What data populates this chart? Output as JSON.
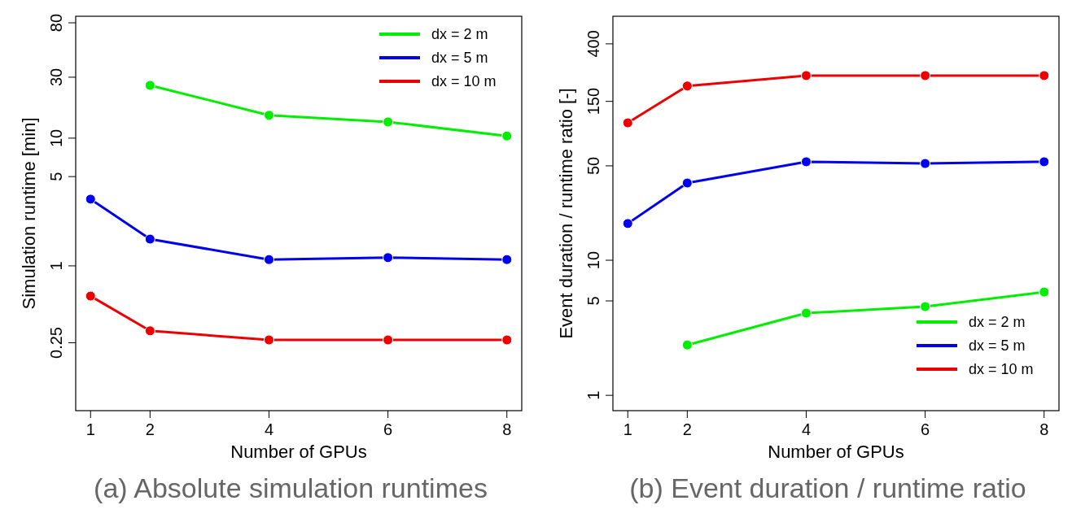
{
  "chart_data": [
    {
      "type": "line",
      "title": "(a) Absolute simulation runtimes",
      "xlabel": "Number of GPUs",
      "ylabel": "Simulation runtime [min]",
      "log": "y",
      "xlim": [
        0.75,
        8.25
      ],
      "xticks": [
        1,
        2,
        4,
        6,
        8
      ],
      "ylim": [
        0.0735,
        90
      ],
      "yticks": [
        0.25,
        1,
        5,
        10,
        30,
        80
      ],
      "legend": "top right",
      "marker": "circle",
      "line_style": "solid",
      "grid": false,
      "series": [
        {
          "name": "dx = 2 m",
          "color": "#00ee00",
          "x": [
            2,
            4,
            6,
            8
          ],
          "values": [
            25.9,
            15.1,
            13.4,
            10.4
          ]
        },
        {
          "name": "dx = 5 m",
          "color": "#0000ee",
          "x": [
            1,
            2,
            4,
            6,
            8
          ],
          "values": [
            3.33,
            1.62,
            1.12,
            1.16,
            1.12
          ]
        },
        {
          "name": "dx = 10 m",
          "color": "#ee0000",
          "x": [
            1,
            2,
            4,
            6,
            8
          ],
          "values": [
            0.58,
            0.31,
            0.263,
            0.263,
            0.263
          ]
        }
      ]
    },
    {
      "type": "line",
      "title": "(b) Event duration / runtime ratio",
      "xlabel": "Number of GPUs",
      "ylabel": "Event duration / runtime ratio [-]",
      "log": "y",
      "xlim": [
        0.75,
        8.25
      ],
      "xticks": [
        1,
        2,
        4,
        6,
        8
      ],
      "ylim": [
        0.77,
        640
      ],
      "yticks": [
        1,
        5,
        10,
        50,
        150,
        400
      ],
      "legend": "bottom right",
      "marker": "circle",
      "line_style": "solid",
      "grid": false,
      "series": [
        {
          "name": "dx = 2 m",
          "color": "#00ee00",
          "x": [
            2,
            4,
            6,
            8
          ],
          "values": [
            2.36,
            4.06,
            4.54,
            5.82
          ]
        },
        {
          "name": "dx = 5 m",
          "color": "#0000ee",
          "x": [
            1,
            2,
            4,
            6,
            8
          ],
          "values": [
            18.7,
            37.3,
            53.6,
            52,
            53.6
          ]
        },
        {
          "name": "dx = 10 m",
          "color": "#ee0000",
          "x": [
            1,
            2,
            4,
            6,
            8
          ],
          "values": [
            104,
            195,
            233,
            233,
            233
          ]
        }
      ]
    }
  ]
}
